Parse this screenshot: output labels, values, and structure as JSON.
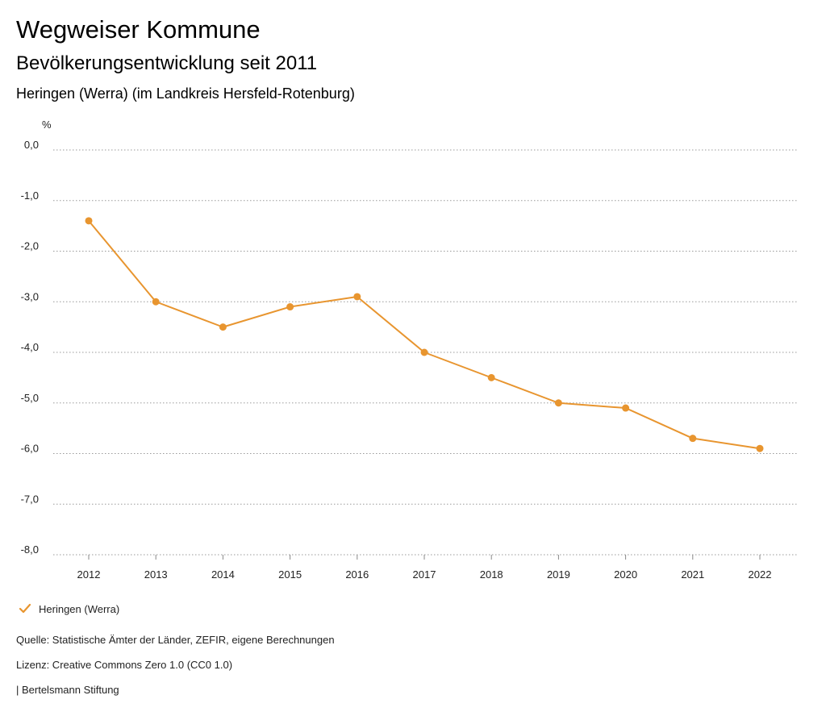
{
  "header": {
    "title": "Wegweiser Kommune",
    "subtitle": "Bevölkerungsentwicklung seit 2011",
    "region": "Heringen (Werra) (im Landkreis Hersfeld-Rotenburg)"
  },
  "chart_data": {
    "type": "line",
    "y_unit": "%",
    "x": [
      "2012",
      "2013",
      "2014",
      "2015",
      "2016",
      "2017",
      "2018",
      "2019",
      "2020",
      "2021",
      "2022"
    ],
    "series": [
      {
        "name": "Heringen (Werra)",
        "color": "#e8952f",
        "values": [
          -1.4,
          -3.0,
          -3.5,
          -3.1,
          -2.9,
          -4.0,
          -4.5,
          -5.0,
          -5.1,
          -5.7,
          -5.9
        ]
      }
    ],
    "ylim": [
      -8.0,
      0.0
    ],
    "y_ticks": [
      {
        "value": 0.0,
        "label": "0,0"
      },
      {
        "value": -1.0,
        "label": "-1,0"
      },
      {
        "value": -2.0,
        "label": "-2,0"
      },
      {
        "value": -3.0,
        "label": "-3,0"
      },
      {
        "value": -4.0,
        "label": "-4,0"
      },
      {
        "value": -5.0,
        "label": "-5,0"
      },
      {
        "value": -6.0,
        "label": "-6,0"
      },
      {
        "value": -7.0,
        "label": "-7,0"
      },
      {
        "value": -8.0,
        "label": "-8,0"
      }
    ],
    "grid": true,
    "grid_style": "dotted",
    "legend_position": "bottom-left"
  },
  "legend": {
    "label": "Heringen (Werra)"
  },
  "footer": {
    "source": "Quelle: Statistische Ämter der Länder, ZEFIR, eigene Berechnungen",
    "license": "Lizenz: Creative Commons Zero 1.0 (CC0 1.0)",
    "publisher": "| Bertelsmann Stiftung"
  }
}
